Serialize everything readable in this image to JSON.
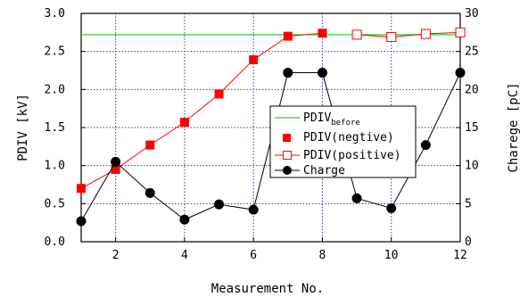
{
  "chart_data": {
    "type": "line",
    "xlabel": "Measurement No.",
    "ylabel_left": "PDIV [kV]",
    "ylabel_right": "Charege [pC]",
    "xlim": [
      1,
      12
    ],
    "ylim_left": [
      0,
      3
    ],
    "ylim_right": [
      0,
      30
    ],
    "x_ticks": [
      2,
      4,
      6,
      8,
      10,
      12
    ],
    "y_ticks_left": [
      "0.0",
      "0.5",
      "1.0",
      "1.5",
      "2.0",
      "2.5",
      "3.0"
    ],
    "y_ticks_right": [
      "0",
      "5",
      "10",
      "15",
      "20",
      "25",
      "30"
    ],
    "grid": true,
    "legend_position": "center-right",
    "series": [
      {
        "name": "PDIV_before",
        "name_main": "PDIV",
        "name_sub": "before",
        "axis": "left",
        "color": "#33cc33",
        "marker": "none",
        "x": [
          1,
          12
        ],
        "y": [
          2.72,
          2.72
        ]
      },
      {
        "name": "PDIV(negtive)",
        "axis": "left",
        "color": "#ff0000",
        "marker": "filled-square",
        "x": [
          1,
          2,
          3,
          4,
          5,
          6,
          7,
          8
        ],
        "y": [
          0.7,
          0.95,
          1.27,
          1.57,
          1.94,
          2.39,
          2.7,
          2.74
        ]
      },
      {
        "name": "PDIV(positive)",
        "axis": "left",
        "color": "#ff0000",
        "marker": "open-square",
        "x": [
          9,
          10,
          11,
          12
        ],
        "y": [
          2.72,
          2.69,
          2.73,
          2.75
        ]
      },
      {
        "name": "Charge",
        "axis": "right",
        "color": "#000000",
        "marker": "filled-circle",
        "x": [
          1,
          2,
          3,
          4,
          5,
          6,
          7,
          8,
          9,
          10,
          11,
          12
        ],
        "y": [
          2.7,
          10.5,
          6.4,
          2.9,
          4.9,
          4.2,
          22.2,
          22.2,
          5.7,
          4.4,
          12.7,
          22.2
        ]
      }
    ]
  }
}
